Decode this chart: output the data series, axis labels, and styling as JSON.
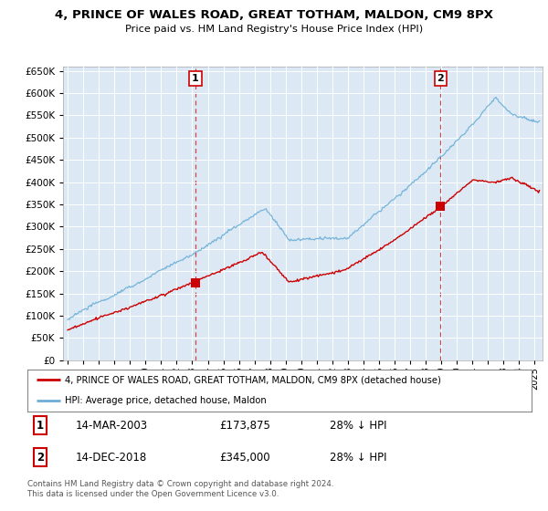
{
  "title": "4, PRINCE OF WALES ROAD, GREAT TOTHAM, MALDON, CM9 8PX",
  "subtitle": "Price paid vs. HM Land Registry's House Price Index (HPI)",
  "ylim": [
    0,
    660000
  ],
  "yticks": [
    0,
    50000,
    100000,
    150000,
    200000,
    250000,
    300000,
    350000,
    400000,
    450000,
    500000,
    550000,
    600000,
    650000
  ],
  "xlim_start": 1994.7,
  "xlim_end": 2025.5,
  "sale1_x": 2003.2,
  "sale1_y": 173875,
  "sale2_x": 2018.95,
  "sale2_y": 345000,
  "red_color": "#cc0000",
  "blue_color": "#6baed6",
  "dline_color": "#cc0000",
  "plot_bg": "#dce9f5",
  "legend_entry1": "4, PRINCE OF WALES ROAD, GREAT TOTHAM, MALDON, CM9 8PX (detached house)",
  "legend_entry2": "HPI: Average price, detached house, Maldon",
  "note1_date": "14-MAR-2003",
  "note1_price": "£173,875",
  "note1_hpi": "28% ↓ HPI",
  "note2_date": "14-DEC-2018",
  "note2_price": "£345,000",
  "note2_hpi": "28% ↓ HPI",
  "footer": "Contains HM Land Registry data © Crown copyright and database right 2024.\nThis data is licensed under the Open Government Licence v3.0."
}
